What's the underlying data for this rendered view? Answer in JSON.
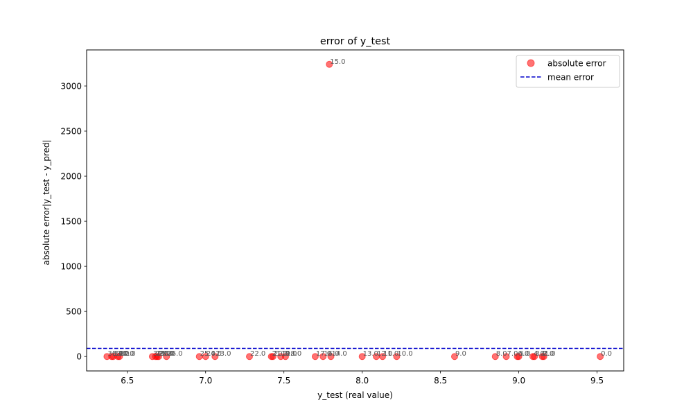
{
  "chart_data": {
    "type": "scatter",
    "title": "error of y_test",
    "xlabel": "y_test (real value)",
    "ylabel": "absolute error|y_test - y_pred|",
    "xlim": [
      6.24,
      9.67
    ],
    "ylim": [
      -160,
      3400
    ],
    "xticks": [
      "6.5",
      "7.0",
      "7.5",
      "8.0",
      "8.5",
      "9.0",
      "9.5"
    ],
    "yticks": [
      "0",
      "500",
      "1000",
      "1500",
      "2000",
      "2500",
      "3000"
    ],
    "legend_position": "top-right",
    "colors": {
      "points": "#ff0000",
      "mean_line": "#0000cc"
    },
    "series": [
      {
        "name": "absolute error",
        "kind": "scatter",
        "points": [
          {
            "x": 6.37,
            "y": 0,
            "label": "36.0"
          },
          {
            "x": 6.4,
            "y": 0,
            "label": "33.0"
          },
          {
            "x": 6.41,
            "y": 0,
            "label": "34.0"
          },
          {
            "x": 6.44,
            "y": 0,
            "label": "31.0"
          },
          {
            "x": 6.45,
            "y": 0,
            "label": "32.0"
          },
          {
            "x": 6.66,
            "y": 0,
            "label": "30.0"
          },
          {
            "x": 6.68,
            "y": 0,
            "label": "29.0"
          },
          {
            "x": 6.69,
            "y": 0,
            "label": "28.0"
          },
          {
            "x": 6.7,
            "y": 0,
            "label": "27.0"
          },
          {
            "x": 6.75,
            "y": 0,
            "label": "26.0"
          },
          {
            "x": 6.96,
            "y": 0,
            "label": "25.0"
          },
          {
            "x": 7.0,
            "y": 0,
            "label": "24.0"
          },
          {
            "x": 7.06,
            "y": 0,
            "label": "23.0"
          },
          {
            "x": 7.28,
            "y": 0,
            "label": "22.0"
          },
          {
            "x": 7.42,
            "y": 0,
            "label": "21.0"
          },
          {
            "x": 7.43,
            "y": 0,
            "label": "20.0"
          },
          {
            "x": 7.48,
            "y": 0,
            "label": "19.0"
          },
          {
            "x": 7.51,
            "y": 0,
            "label": "18.0"
          },
          {
            "x": 7.7,
            "y": 0,
            "label": "17.0"
          },
          {
            "x": 7.75,
            "y": 0,
            "label": "16.0"
          },
          {
            "x": 7.79,
            "y": 3240,
            "label": "15.0"
          },
          {
            "x": 7.8,
            "y": 0,
            "label": "14.0"
          },
          {
            "x": 8.0,
            "y": 0,
            "label": "13.0"
          },
          {
            "x": 8.09,
            "y": 0,
            "label": "12.0"
          },
          {
            "x": 8.13,
            "y": 0,
            "label": "11.0"
          },
          {
            "x": 8.22,
            "y": 0,
            "label": "10.0"
          },
          {
            "x": 8.59,
            "y": 0,
            "label": "9.0"
          },
          {
            "x": 8.85,
            "y": 0,
            "label": "8.0"
          },
          {
            "x": 8.92,
            "y": 0,
            "label": "7.0"
          },
          {
            "x": 8.99,
            "y": 0,
            "label": "6.0"
          },
          {
            "x": 9.0,
            "y": 0,
            "label": "5.0"
          },
          {
            "x": 9.09,
            "y": 0,
            "label": "4.0"
          },
          {
            "x": 9.1,
            "y": 0,
            "label": "3.0"
          },
          {
            "x": 9.15,
            "y": 0,
            "label": "2.0"
          },
          {
            "x": 9.16,
            "y": 0,
            "label": "1.0"
          },
          {
            "x": 9.52,
            "y": 0,
            "label": "0.0"
          }
        ]
      },
      {
        "name": "mean error",
        "kind": "hline",
        "y": 90
      }
    ]
  }
}
